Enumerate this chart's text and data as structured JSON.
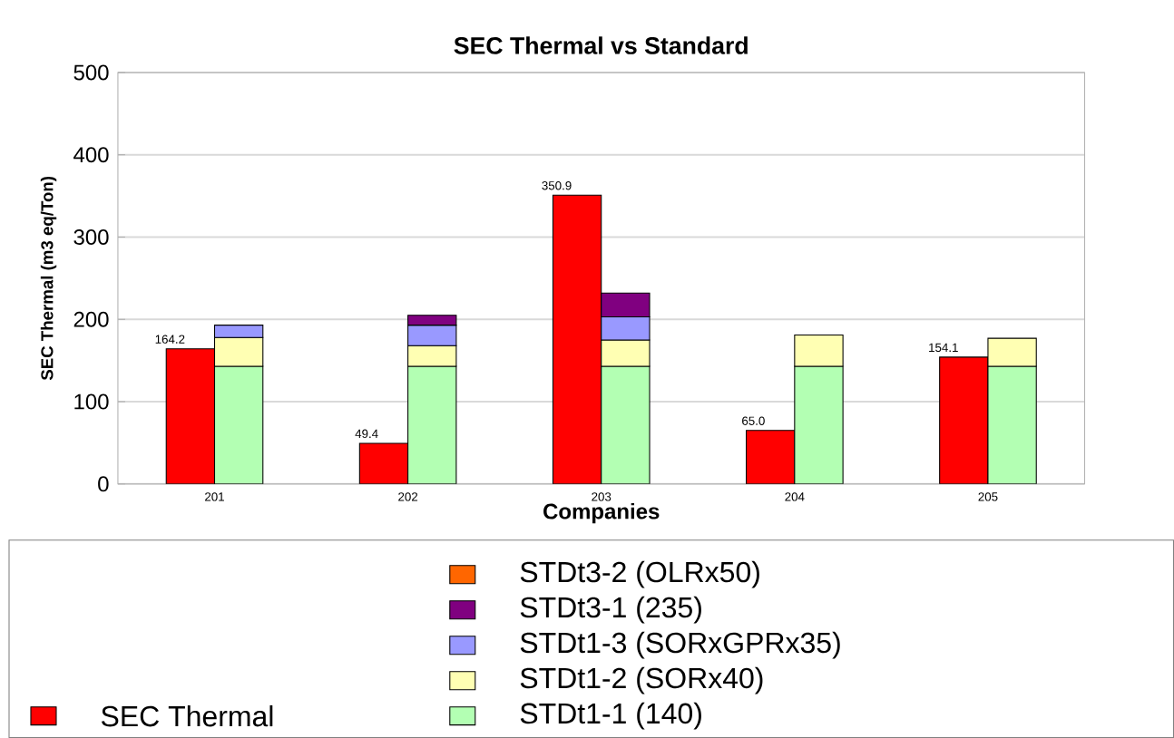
{
  "chart_data": {
    "type": "bar",
    "title": "SEC Thermal vs Standard",
    "xlabel": "Companies",
    "ylabel": "SEC Thermal (m3 eq/Ton)",
    "categories": [
      "201",
      "202",
      "203",
      "204",
      "205"
    ],
    "series": [
      {
        "name": "SEC Thermal",
        "color": "#ff0000",
        "values": [
          164.2,
          49.4,
          350.9,
          65.0,
          154.1
        ],
        "value_labels": [
          "164.2",
          "49.4",
          "350.9",
          "65.0",
          "154.1"
        ]
      },
      {
        "name": "STDt1-1 (140)",
        "color": "#b3ffb3",
        "values": [
          143,
          143,
          143,
          143,
          143
        ],
        "base": [
          0,
          0,
          0,
          0,
          0
        ]
      },
      {
        "name": "STDt1-2 (SORx40)",
        "color": "#ffffb3",
        "values": [
          35,
          25,
          32,
          38,
          34
        ],
        "base": [
          143,
          143,
          143,
          143,
          143
        ]
      },
      {
        "name": "STDt1-3 (SORxGPRx35)",
        "color": "#9999ff",
        "values": [
          15,
          25,
          28,
          null,
          null
        ],
        "base": [
          178,
          168,
          175,
          null,
          null
        ]
      },
      {
        "name": "STDt3-1 (235)",
        "color": "#800080",
        "values": [
          null,
          12,
          29,
          null,
          null
        ],
        "base": [
          null,
          193,
          203,
          null,
          null
        ]
      },
      {
        "name": "STDt3-2 (OLRx50)",
        "color": "#ff6600",
        "values": [
          null,
          null,
          null,
          null,
          null
        ],
        "base": [
          null,
          null,
          null,
          null,
          null
        ]
      }
    ],
    "ylim": [
      0,
      500
    ],
    "yticks": [
      0,
      100,
      200,
      300,
      400,
      500
    ],
    "grid": "y",
    "legend": "bottom"
  }
}
